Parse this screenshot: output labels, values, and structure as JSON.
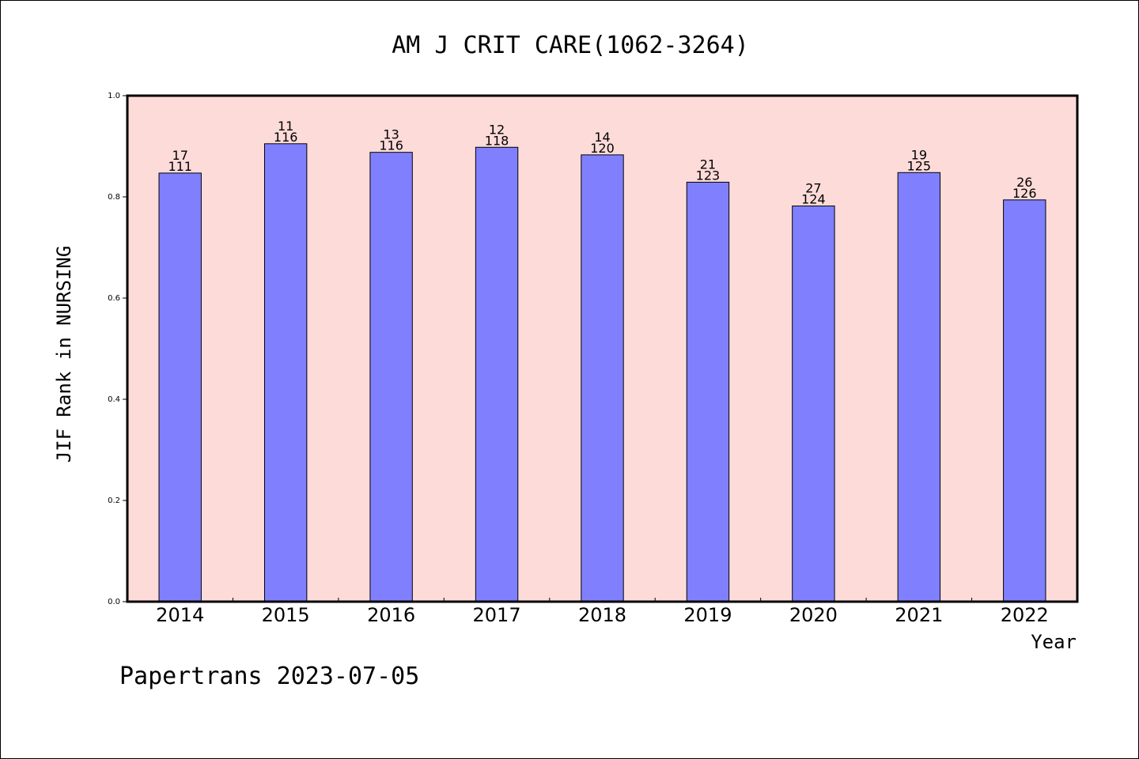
{
  "chart_data": {
    "type": "bar",
    "title": "AM J CRIT CARE(1062-3264)",
    "xlabel": "Year",
    "ylabel": "JIF Rank in NURSING",
    "ylim": [
      0,
      1.0
    ],
    "yticks": [
      "0.0",
      "0.2",
      "0.4",
      "0.6",
      "0.8",
      "1.0"
    ],
    "grid": false,
    "categories": [
      "2014",
      "2015",
      "2016",
      "2017",
      "2018",
      "2019",
      "2020",
      "2021",
      "2022"
    ],
    "values": [
      0.847,
      0.905,
      0.888,
      0.898,
      0.883,
      0.829,
      0.782,
      0.848,
      0.794
    ],
    "rank_labels": [
      "17",
      "11",
      "13",
      "12",
      "14",
      "21",
      "27",
      "19",
      "26"
    ],
    "total_labels": [
      "111",
      "116",
      "116",
      "118",
      "120",
      "123",
      "124",
      "125",
      "126"
    ],
    "colors": {
      "bar": "#8080ff",
      "plot_background": "#fddbd9",
      "axis": "#000000"
    }
  },
  "footer": {
    "text": "Papertrans 2023-07-05"
  }
}
